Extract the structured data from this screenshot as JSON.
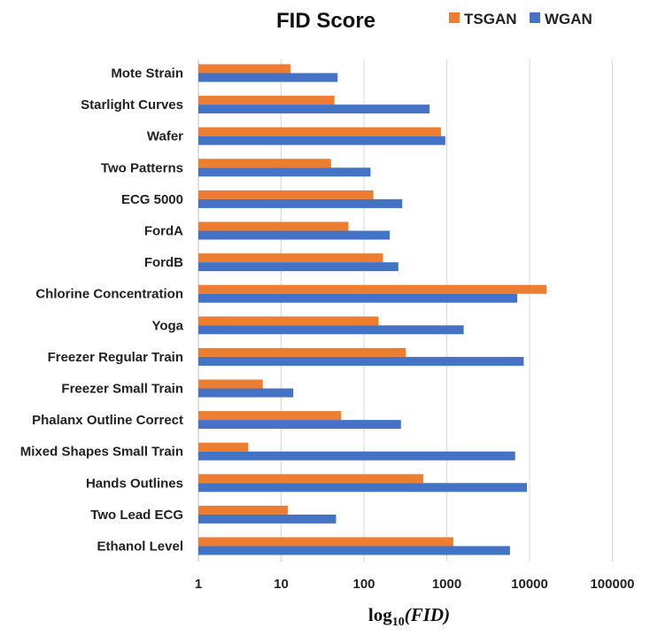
{
  "chart_data": {
    "type": "bar",
    "orientation": "horizontal",
    "title": "FID Score",
    "xlabel": {
      "base": "log",
      "subscript": "10",
      "argument": "(FID)"
    },
    "xscale": "log10",
    "xlim": [
      1,
      100000
    ],
    "xticks": [
      "1",
      "10",
      "100",
      "1000",
      "10000",
      "100000"
    ],
    "grid": true,
    "legend_position": "top-right",
    "categories": [
      "Mote Strain",
      "Starlight Curves",
      "Wafer",
      "Two Patterns",
      "ECG 5000",
      "FordA",
      "FordB",
      "Chlorine Concentration",
      "Yoga",
      "Freezer Regular Train",
      "Freezer Small Train",
      "Phalanx Outline Correct",
      "Mixed Shapes Small Train",
      "Hands Outlines",
      "Two Lead ECG",
      "Ethanol Level"
    ],
    "series": [
      {
        "name": "TSGAN",
        "color": "#ED7D31",
        "values": [
          13,
          44,
          850,
          40,
          130,
          65,
          170,
          16000,
          150,
          320,
          6,
          53,
          4,
          520,
          12,
          1200
        ]
      },
      {
        "name": "WGAN",
        "color": "#4472C4",
        "values": [
          48,
          620,
          960,
          120,
          290,
          205,
          260,
          7100,
          1600,
          8500,
          14,
          280,
          6700,
          9300,
          46,
          5800
        ]
      }
    ]
  }
}
